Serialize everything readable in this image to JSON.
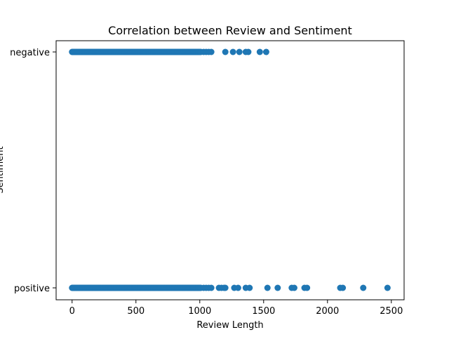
{
  "chart_data": {
    "type": "scatter",
    "title": "Correlation between Review and Sentiment",
    "xlabel": "Review Length",
    "ylabel": "Sentiment",
    "xlim": [
      -125,
      2600
    ],
    "xticks": [
      0,
      500,
      1000,
      1500,
      2000,
      2500
    ],
    "categories": [
      "positive",
      "negative"
    ],
    "grid": false,
    "marker_color": "#1f77b4",
    "series": [
      {
        "category": "negative",
        "dense_range": [
          0,
          1010
        ],
        "x": [
          1030,
          1050,
          1070,
          1090,
          1200,
          1260,
          1310,
          1360,
          1380,
          1470,
          1520
        ]
      },
      {
        "category": "positive",
        "dense_range": [
          0,
          1010
        ],
        "x": [
          1030,
          1050,
          1070,
          1090,
          1150,
          1170,
          1190,
          1200,
          1270,
          1300,
          1360,
          1390,
          1530,
          1610,
          1720,
          1740,
          1820,
          1840,
          2100,
          2120,
          2280,
          2470
        ]
      }
    ]
  }
}
